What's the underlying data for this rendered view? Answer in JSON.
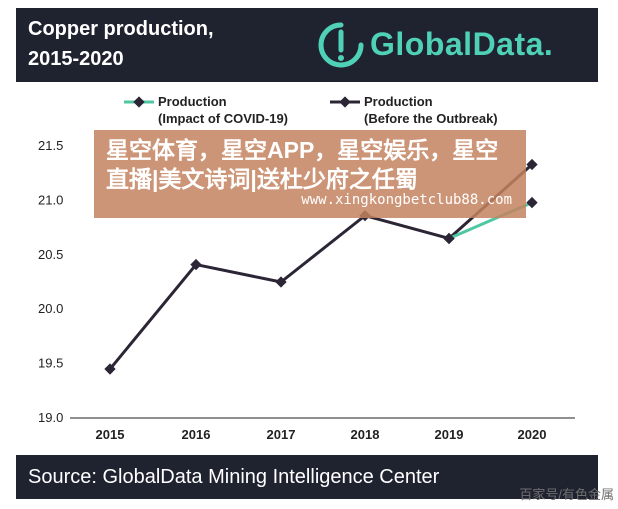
{
  "header": {
    "title_line1": "Copper production,",
    "title_line2": "2015-2020",
    "logo_text": "GlobalData.",
    "logo_color": "#4fd1b8"
  },
  "chart_data": {
    "type": "line",
    "x": [
      "2015",
      "2016",
      "2017",
      "2018",
      "2019",
      "2020"
    ],
    "series": [
      {
        "name": "Production (Impact of COVID-19)",
        "legend_line1": "Production",
        "legend_line2": "(Impact of COVID-19)",
        "color": "#4fc7a2",
        "values": [
          null,
          null,
          null,
          null,
          20.65,
          20.98
        ]
      },
      {
        "name": "Production (Before the Outbreak)",
        "legend_line1": "Production",
        "legend_line2": "(Before the Outbreak)",
        "color": "#2b2535",
        "values": [
          19.45,
          20.41,
          20.25,
          20.86,
          20.65,
          21.33
        ]
      }
    ],
    "ylim": [
      19.0,
      21.5
    ],
    "yticks": [
      "19.0",
      "19.5",
      "20.0",
      "20.5",
      "21.0",
      "21.5"
    ],
    "grid": false,
    "legend_position": "top"
  },
  "footer": {
    "source": "Source:  GlobalData Mining Intelligence Center"
  },
  "overlay": {
    "text": "星空体育，星空APP，星空娱乐，星空直播|美文诗词|送杜少府之任蜀",
    "url": "www.xingkongbetclub88.com"
  },
  "watermark": "百家号/有色金属"
}
